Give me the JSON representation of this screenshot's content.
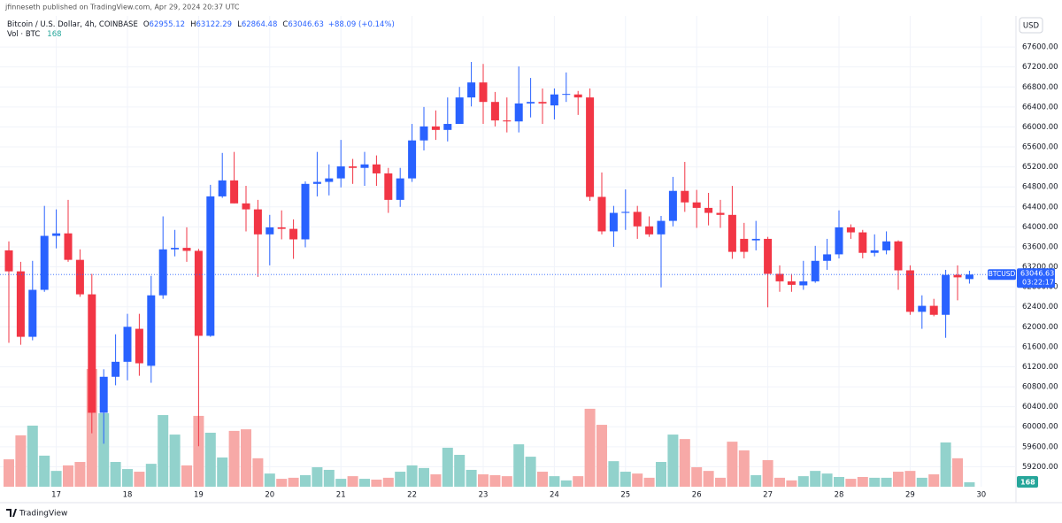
{
  "chart_data": {
    "type": "candlestick",
    "publisher": "jfinneseth published on TradingView.com, Apr 29, 2024 20:37 UTC",
    "title": "Bitcoin / U.S. Dollar, 4h, COINBASE",
    "legend": [
      {
        "label": "O",
        "value": "62955.12"
      },
      {
        "label": "H",
        "value": "63122.29"
      },
      {
        "label": "L",
        "value": "62864.48"
      },
      {
        "label": "C",
        "value": "63046.63"
      }
    ],
    "change_label": "+88.09 (+0.14%)",
    "volume_title": "Vol · BTC",
    "currency": "USD",
    "symbol": "BTCUSD",
    "countdown": "03:22:17",
    "branding": "TradingView",
    "up_color": "#2962ff",
    "down_color": "#f23645",
    "volume_up_color": "#92d2cc",
    "volume_down_color": "#f7a9a7",
    "open": [
      63530,
      63110,
      61800,
      62740,
      63820,
      63870,
      63340,
      62650,
      60280,
      61000,
      61300,
      61960,
      61220,
      62630,
      63550,
      63580,
      63520,
      61820,
      64610,
      64930,
      64470,
      64350,
      63850,
      63990,
      63960,
      63750,
      64860,
      64900,
      64970,
      65210,
      65180,
      65250,
      65070,
      64540,
      64970,
      65730,
      66010,
      65940,
      66060,
      66590,
      66890,
      66500,
      66130,
      66110,
      66470,
      66500,
      66430,
      66650,
      66650,
      66590,
      64600,
      63910,
      64280,
      64300,
      64010,
      63850,
      64120,
      64720,
      64490,
      64380,
      64280,
      64240,
      63760,
      63730,
      63760,
      63060,
      62910,
      62830,
      62910,
      63320,
      63450,
      63990,
      63890,
      63480,
      63530,
      63710,
      63130,
      62300,
      62420,
      62240,
      63040,
      62955.12
    ],
    "high": [
      63710,
      63300,
      63320,
      64420,
      64350,
      64540,
      63550,
      63060,
      61150,
      61850,
      62260,
      62260,
      63020,
      64210,
      63940,
      63990,
      63560,
      64840,
      65480,
      65500,
      64820,
      64540,
      64240,
      64330,
      64150,
      64910,
      65500,
      65250,
      65740,
      65360,
      65500,
      65430,
      65180,
      65180,
      66060,
      66400,
      66330,
      66590,
      66800,
      67300,
      67260,
      66700,
      66590,
      67210,
      66980,
      66770,
      66770,
      67090,
      66720,
      66770,
      65090,
      64420,
      64750,
      64420,
      64210,
      64220,
      65000,
      65300,
      64740,
      64680,
      64540,
      64820,
      64080,
      64120,
      63800,
      63230,
      63060,
      63320,
      63620,
      63760,
      64330,
      64050,
      63940,
      63850,
      63910,
      63730,
      63230,
      62630,
      62560,
      63140,
      63230,
      63122.29
    ],
    "low": [
      61680,
      61640,
      61730,
      62700,
      63570,
      63300,
      62600,
      59870,
      59660,
      60830,
      60930,
      61020,
      60880,
      62560,
      63410,
      63300,
      59610,
      61800,
      64580,
      64470,
      63910,
      63000,
      63230,
      63750,
      63360,
      63590,
      64610,
      64630,
      64790,
      64860,
      64820,
      64820,
      64280,
      64400,
      64900,
      65530,
      65740,
      65710,
      66060,
      66410,
      66060,
      66010,
      65890,
      65890,
      66190,
      66060,
      66150,
      66500,
      66240,
      64520,
      63850,
      63600,
      63940,
      63760,
      63800,
      62790,
      64010,
      64300,
      63980,
      64030,
      63980,
      63360,
      63370,
      63530,
      62390,
      62700,
      62700,
      62740,
      62880,
      63140,
      63370,
      63760,
      63370,
      63410,
      63450,
      62740,
      62240,
      61960,
      62210,
      61780,
      62530,
      62864.48
    ],
    "close": [
      63110,
      61800,
      62740,
      63820,
      63870,
      63340,
      62650,
      60280,
      61000,
      61300,
      62000,
      61270,
      62630,
      63550,
      63580,
      63520,
      61820,
      64610,
      64930,
      64470,
      64350,
      63850,
      63990,
      63960,
      63750,
      64860,
      64900,
      64970,
      65210,
      65180,
      65250,
      65070,
      64540,
      64970,
      65730,
      66010,
      65940,
      66060,
      66590,
      66890,
      66500,
      66130,
      66110,
      66470,
      66500,
      66470,
      66650,
      66660,
      66590,
      64600,
      63910,
      64280,
      64300,
      64010,
      63850,
      64120,
      64720,
      64490,
      64380,
      64280,
      64240,
      63500,
      63500,
      63760,
      63060,
      62910,
      62840,
      62910,
      63320,
      63450,
      63990,
      63890,
      63480,
      63530,
      63710,
      63130,
      62300,
      62420,
      62240,
      63040,
      62990,
      63046.63
    ],
    "volume": [
      1040,
      1950,
      2320,
      1180,
      600,
      810,
      940,
      4470,
      2790,
      940,
      670,
      570,
      870,
      2720,
      1980,
      810,
      2690,
      2050,
      1110,
      2120,
      2180,
      1080,
      500,
      300,
      340,
      440,
      740,
      640,
      300,
      400,
      300,
      270,
      340,
      570,
      810,
      710,
      470,
      1480,
      1210,
      640,
      470,
      440,
      400,
      1610,
      1140,
      570,
      400,
      240,
      400,
      2960,
      2350,
      970,
      570,
      500,
      340,
      940,
      1980,
      1810,
      740,
      600,
      340,
      1710,
      1380,
      440,
      1010,
      340,
      240,
      400,
      600,
      500,
      370,
      300,
      370,
      340,
      340,
      570,
      600,
      340,
      470,
      1680,
      1080,
      168
    ],
    "ylim": [
      58800,
      68540
    ],
    "y2lim": [
      0,
      18480
    ],
    "yticks": [
      {
        "value": 59200,
        "label": "59200.00"
      },
      {
        "value": 59600,
        "label": "59600.00"
      },
      {
        "value": 60000,
        "label": "60000.00"
      },
      {
        "value": 60400,
        "label": "60400.00"
      },
      {
        "value": 60800,
        "label": "60800.00"
      },
      {
        "value": 61200,
        "label": "61200.00"
      },
      {
        "value": 61600,
        "label": "61600.00"
      },
      {
        "value": 62000,
        "label": "62000.00"
      },
      {
        "value": 62400,
        "label": "62400.00"
      },
      {
        "value": 62800,
        "label": "62800.00"
      },
      {
        "value": 63200,
        "label": "63200.00"
      },
      {
        "value": 63600,
        "label": "63600.00"
      },
      {
        "value": 64000,
        "label": "64000.00"
      },
      {
        "value": 64400,
        "label": "64400.00"
      },
      {
        "value": 64800,
        "label": "64800.00"
      },
      {
        "value": 65200,
        "label": "65200.00"
      },
      {
        "value": 65600,
        "label": "65600.00"
      },
      {
        "value": 66000,
        "label": "66000.00"
      },
      {
        "value": 66400,
        "label": "66400.00"
      },
      {
        "value": 66800,
        "label": "66800.00"
      },
      {
        "value": 67200,
        "label": "67200.00"
      },
      {
        "value": 67600,
        "label": "67600.00"
      }
    ],
    "xticks": [
      {
        "value": 4,
        "label": "17"
      },
      {
        "value": 10,
        "label": "18"
      },
      {
        "value": 16,
        "label": "19"
      },
      {
        "value": 22,
        "label": "20"
      },
      {
        "value": 28,
        "label": "21"
      },
      {
        "value": 34,
        "label": "22"
      },
      {
        "value": 40,
        "label": "23"
      },
      {
        "value": 46,
        "label": "24"
      },
      {
        "value": 52,
        "label": "25"
      },
      {
        "value": 58,
        "label": "26"
      },
      {
        "value": 64,
        "label": "27"
      },
      {
        "value": 70,
        "label": "28"
      },
      {
        "value": 76,
        "label": "29"
      },
      {
        "value": 82,
        "label": "30"
      }
    ]
  }
}
